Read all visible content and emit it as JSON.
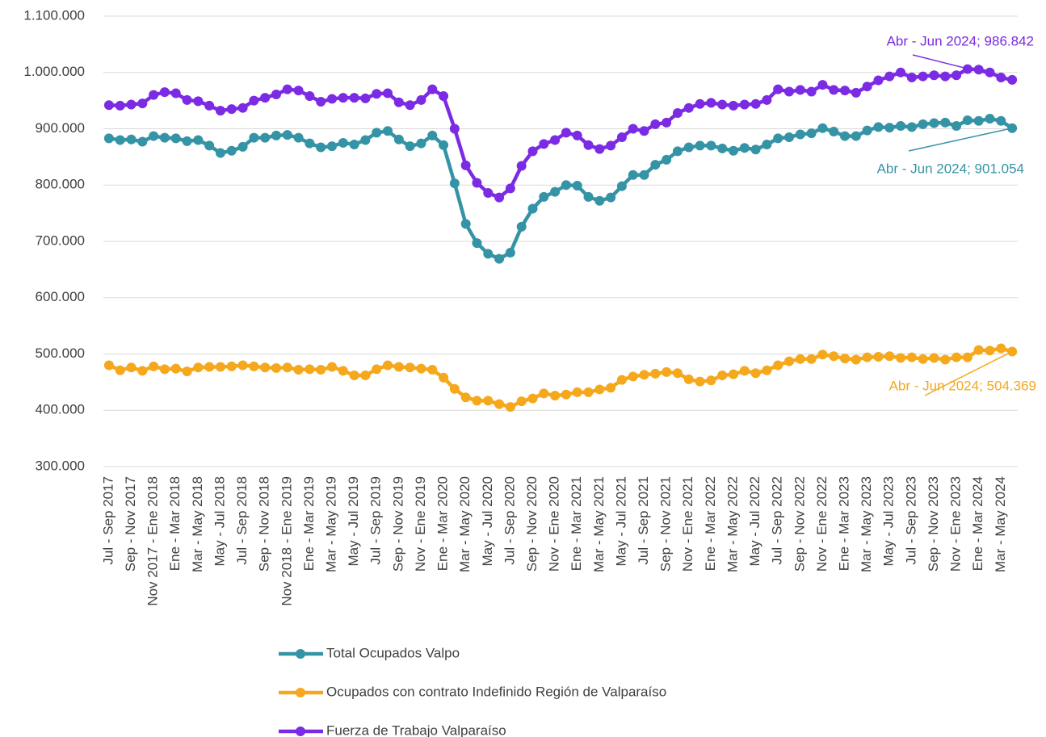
{
  "chart_data": {
    "type": "line",
    "categories": [
      "Jul - Sep 2017",
      null,
      "Sep - Nov 2017",
      null,
      "Nov 2017 - Ene 2018",
      null,
      "Ene - Mar 2018",
      null,
      "Mar - May 2018",
      null,
      "May - Jul 2018",
      null,
      "Jul - Sep 2018",
      null,
      "Sep - Nov 2018",
      null,
      "Nov 2018 - Ene 2019",
      null,
      "Ene - Mar 2019",
      null,
      "Mar - May 2019",
      null,
      "May - Jul 2019",
      null,
      "Jul - Sep 2019",
      null,
      "Sep - Nov 2019",
      null,
      "Nov - Ene 2019",
      null,
      "Ene - Mar 2020",
      null,
      "Mar - May 2020",
      null,
      "May - Jul 2020",
      null,
      "Jul - Sep 2020",
      null,
      "Sep - Nov 2020",
      null,
      "Nov - Ene 2020",
      null,
      "Ene - Mar 2021",
      null,
      "Mar - May 2021",
      null,
      "May - Jul 2021",
      null,
      "Jul - Sep 2021",
      null,
      "Sep - Nov 2021",
      null,
      "Nov - Ene 2021",
      null,
      "Ene - Mar 2022",
      null,
      "Mar - May 2022",
      null,
      "May - Jul 2022",
      null,
      "Jul - Sep 2022",
      null,
      "Sep - Nov 2022",
      null,
      "Nov - Ene 2022",
      null,
      "Ene - Mar 2023",
      null,
      "Mar - May 2023",
      null,
      "May - Jul 2023",
      null,
      "Jul - Sep 2023",
      null,
      "Sep - Nov 2023",
      null,
      "Nov - Ene 2023",
      null,
      "Ene - Mar 2024",
      null,
      "Mar - May 2024",
      null
    ],
    "series": [
      {
        "name": "Total Ocupados Valpo",
        "color": "#3593a6",
        "values": [
          883000,
          880000,
          881000,
          877000,
          887000,
          884000,
          883000,
          878000,
          880000,
          870000,
          857000,
          861000,
          868000,
          884000,
          884000,
          888000,
          889000,
          884000,
          874000,
          867000,
          869000,
          875000,
          872000,
          880000,
          893000,
          896000,
          881000,
          869000,
          874000,
          888000,
          871000,
          803000,
          731000,
          697000,
          678000,
          669000,
          680000,
          726000,
          758000,
          779000,
          788000,
          800000,
          799000,
          779000,
          772000,
          778000,
          798000,
          818000,
          818000,
          836000,
          845000,
          860000,
          867000,
          870000,
          870000,
          865000,
          861000,
          866000,
          863000,
          872000,
          883000,
          885000,
          890000,
          892000,
          901000,
          895000,
          887000,
          887000,
          897000,
          903000,
          902000,
          905000,
          903000,
          908000,
          910000,
          911000,
          905000,
          915000,
          914000,
          918000,
          914000,
          901054
        ],
        "value_labels": [
          null,
          null,
          null,
          null,
          null,
          null,
          null,
          null,
          null,
          null,
          null,
          null,
          null,
          null,
          null,
          null,
          null,
          null,
          null,
          null,
          null,
          null,
          null,
          null,
          null,
          null,
          null,
          null,
          null,
          null,
          null,
          null,
          null,
          null,
          null,
          null,
          null,
          null,
          null,
          null,
          null,
          null,
          null,
          null,
          null,
          null,
          null,
          null,
          null,
          null,
          null,
          null,
          null,
          null,
          null,
          null,
          null,
          null,
          null,
          null,
          null,
          null,
          null,
          null,
          null,
          null,
          null,
          null,
          null,
          null,
          null,
          null,
          null,
          null,
          null,
          null,
          null,
          null,
          null,
          null,
          null,
          "Abr - Jun 2024; 901.054"
        ]
      },
      {
        "name": "Ocupados con contrato Indefinido Región de Valparaíso",
        "color": "#f5a81c",
        "values": [
          480000,
          471000,
          476000,
          470000,
          478000,
          473000,
          474000,
          469000,
          476000,
          477000,
          477000,
          478000,
          480000,
          478000,
          476000,
          475000,
          476000,
          472000,
          473000,
          472000,
          477000,
          470000,
          462000,
          462000,
          473000,
          480000,
          477000,
          476000,
          474000,
          472000,
          458000,
          438000,
          423000,
          417000,
          417000,
          411000,
          406000,
          416000,
          421000,
          430000,
          426000,
          428000,
          432000,
          432000,
          437000,
          440000,
          454000,
          460000,
          463000,
          465000,
          468000,
          466000,
          455000,
          451000,
          453000,
          462000,
          464000,
          470000,
          466000,
          471000,
          480000,
          487000,
          491000,
          491000,
          499000,
          496000,
          492000,
          490000,
          494000,
          495000,
          496000,
          493000,
          494000,
          491000,
          493000,
          490000,
          494000,
          494000,
          507000,
          506000,
          510000,
          504369
        ],
        "value_labels": [
          null,
          null,
          null,
          null,
          null,
          null,
          null,
          null,
          null,
          null,
          null,
          null,
          null,
          null,
          null,
          null,
          null,
          null,
          null,
          null,
          null,
          null,
          null,
          null,
          null,
          null,
          null,
          null,
          null,
          null,
          null,
          null,
          null,
          null,
          null,
          null,
          null,
          null,
          null,
          null,
          null,
          null,
          null,
          null,
          null,
          null,
          null,
          null,
          null,
          null,
          null,
          null,
          null,
          null,
          null,
          null,
          null,
          null,
          null,
          null,
          null,
          null,
          null,
          null,
          null,
          null,
          null,
          null,
          null,
          null,
          null,
          null,
          null,
          null,
          null,
          null,
          null,
          null,
          null,
          null,
          null,
          "Abr - Jun 2024; 504.369"
        ]
      },
      {
        "name": "Fuerza de Trabajo Valparaíso",
        "color": "#7b2be3",
        "values": [
          942000,
          941000,
          943000,
          945000,
          960000,
          965000,
          963000,
          951000,
          949000,
          941000,
          932000,
          935000,
          937000,
          950000,
          955000,
          961000,
          970000,
          968000,
          958000,
          948000,
          953000,
          955000,
          955000,
          954000,
          962000,
          963000,
          947000,
          942000,
          951000,
          970000,
          958000,
          900000,
          835000,
          804000,
          786000,
          778000,
          794000,
          834000,
          860000,
          873000,
          880000,
          893000,
          888000,
          871000,
          864000,
          870000,
          885000,
          900000,
          896000,
          908000,
          911000,
          928000,
          937000,
          944000,
          946000,
          943000,
          941000,
          943000,
          944000,
          951000,
          970000,
          966000,
          969000,
          966000,
          978000,
          969000,
          968000,
          964000,
          975000,
          986000,
          993000,
          1000000,
          991000,
          993000,
          995000,
          993000,
          995000,
          1006000,
          1005000,
          1000000,
          991000,
          986842
        ],
        "value_labels": [
          null,
          null,
          null,
          null,
          null,
          null,
          null,
          null,
          null,
          null,
          null,
          null,
          null,
          null,
          null,
          null,
          null,
          null,
          null,
          null,
          null,
          null,
          null,
          null,
          null,
          null,
          null,
          null,
          null,
          null,
          null,
          null,
          null,
          null,
          null,
          null,
          null,
          null,
          null,
          null,
          null,
          null,
          null,
          null,
          null,
          null,
          null,
          null,
          null,
          null,
          null,
          null,
          null,
          null,
          null,
          null,
          null,
          null,
          null,
          null,
          null,
          null,
          null,
          null,
          null,
          null,
          null,
          null,
          null,
          null,
          null,
          null,
          null,
          null,
          null,
          null,
          null,
          null,
          null,
          null,
          null,
          "Abr - Jun 2024; 986.842"
        ]
      }
    ],
    "ylim": [
      300000,
      1100000
    ],
    "yticks": [
      {
        "value": 300000,
        "label": "300.000"
      },
      {
        "value": 400000,
        "label": "400.000"
      },
      {
        "value": 500000,
        "label": "500.000"
      },
      {
        "value": 600000,
        "label": "600.000"
      },
      {
        "value": 700000,
        "label": "700.000"
      },
      {
        "value": 800000,
        "label": "800.000"
      },
      {
        "value": 900000,
        "label": "900.000"
      },
      {
        "value": 1000000,
        "label": "1.000.000"
      },
      {
        "value": 1100000,
        "label": "1.100.000"
      }
    ],
    "grid": true,
    "legend": "bottom"
  }
}
